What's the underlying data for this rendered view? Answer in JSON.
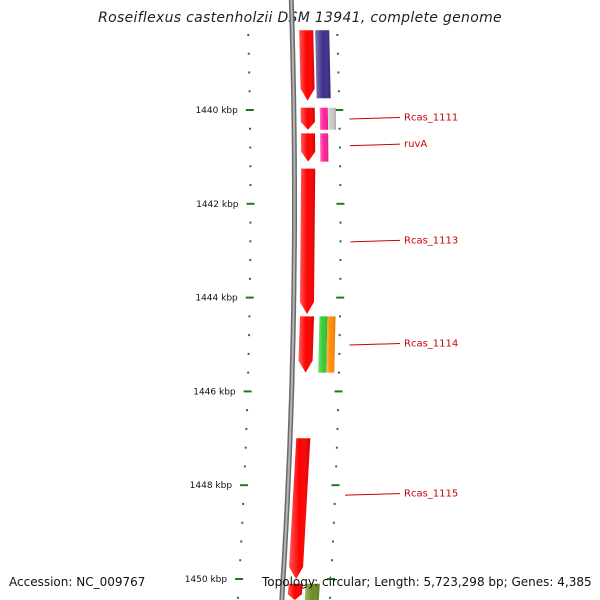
{
  "title": "Roseiflexus castenholzii DSM 13941, complete genome",
  "footer": {
    "accession": "Accession: NC_009767",
    "summary": "Topology: circular; Length: 5,723,298 bp; Genes: 4,385"
  },
  "colors": {
    "backbone": "#8c8c8c",
    "tick": "#1f7a1f",
    "label": "#cc0000",
    "forward_gene": "#ff0000",
    "reverse_gene_1": "#3d2f8a",
    "reverse_gene_2": "#ff1f9a",
    "reverse_gene_3": "#c8c8c8",
    "reverse_gene_4": "#33cc33",
    "reverse_gene_5": "#ff8c00",
    "reverse_gene_6": "#6b8e23"
  },
  "chart_data": {
    "type": "genome-map",
    "position_unit": "kbp",
    "visible_range_kbp": [
      1438.3,
      1450.5
    ],
    "major_tick_step_kbp": 2,
    "minor_tick_step_kbp": 0.4,
    "major_ticks": [
      {
        "kbp": 1440,
        "label": "1440 kbp"
      },
      {
        "kbp": 1442,
        "label": "1442 kbp"
      },
      {
        "kbp": 1444,
        "label": "1444 kbp"
      },
      {
        "kbp": 1446,
        "label": "1446 kbp"
      },
      {
        "kbp": 1448,
        "label": "1448 kbp"
      },
      {
        "kbp": 1450,
        "label": "1450 kbp"
      }
    ],
    "genes": [
      {
        "strand": "forward",
        "start_kbp": 1438.3,
        "end_kbp": 1439.8,
        "color": "forward_gene"
      },
      {
        "strand": "forward",
        "start_kbp": 1439.95,
        "end_kbp": 1440.42,
        "color": "forward_gene"
      },
      {
        "strand": "forward",
        "start_kbp": 1440.5,
        "end_kbp": 1441.1,
        "color": "forward_gene"
      },
      {
        "strand": "forward",
        "start_kbp": 1441.25,
        "end_kbp": 1444.35,
        "color": "forward_gene"
      },
      {
        "strand": "forward",
        "start_kbp": 1444.4,
        "end_kbp": 1445.6,
        "color": "forward_gene"
      },
      {
        "strand": "forward",
        "start_kbp": 1447.0,
        "end_kbp": 1450.0,
        "color": "forward_gene"
      },
      {
        "strand": "forward",
        "start_kbp": 1450.1,
        "end_kbp": 1450.5,
        "color": "forward_gene"
      },
      {
        "strand": "reverse",
        "start_kbp": 1438.3,
        "end_kbp": 1439.75,
        "color": "reverse_gene_1"
      },
      {
        "strand": "reverse",
        "start_kbp": 1439.95,
        "end_kbp": 1440.42,
        "color": "reverse_gene_2"
      },
      {
        "strand": "reverse",
        "start_kbp": 1439.95,
        "end_kbp": 1440.42,
        "color": "reverse_gene_3",
        "offset": 1
      },
      {
        "strand": "reverse",
        "start_kbp": 1440.5,
        "end_kbp": 1441.1,
        "color": "reverse_gene_2"
      },
      {
        "strand": "reverse",
        "start_kbp": 1444.4,
        "end_kbp": 1445.6,
        "color": "reverse_gene_4"
      },
      {
        "strand": "reverse",
        "start_kbp": 1444.4,
        "end_kbp": 1445.6,
        "color": "reverse_gene_5",
        "offset": 1
      },
      {
        "strand": "reverse",
        "start_kbp": 1450.1,
        "end_kbp": 1450.5,
        "color": "reverse_gene_6"
      }
    ],
    "annotations": [
      {
        "label": "Rcas_1111",
        "kbp": 1440.18
      },
      {
        "label": "ruvA",
        "kbp": 1440.75
      },
      {
        "label": "Rcas_1113",
        "kbp": 1442.8
      },
      {
        "label": "Rcas_1114",
        "kbp": 1445.0
      },
      {
        "label": "Rcas_1115",
        "kbp": 1448.2
      }
    ]
  }
}
